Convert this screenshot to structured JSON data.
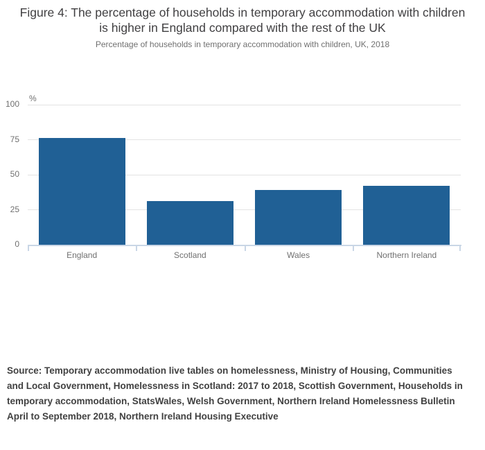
{
  "figure": {
    "title": "Figure 4: The percentage of households in temporary accommodation with children is higher in England compared with the rest of the UK",
    "subtitle": "Percentage of households in temporary accommodation with children, UK, 2018",
    "source": "Source: Temporary accommodation live tables on homelessness, Ministry of Housing, Communities and Local Government, Homelessness in Scotland: 2017 to 2018, Scottish Government, Households in temporary accommodation, StatsWales, Welsh Government, Northern Ireland Homelessness Bulletin April to September 2018, Northern Ireland Housing Executive"
  },
  "chart_data": {
    "type": "bar",
    "title": "Figure 4: The percentage of households in temporary accommodation with children is higher in England compared with the rest of the UK",
    "subtitle": "Percentage of households in temporary accommodation with children, UK, 2018",
    "categories": [
      "England",
      "Scotland",
      "Wales",
      "Northern Ireland"
    ],
    "values": [
      76,
      31,
      39,
      42
    ],
    "unit_label": "%",
    "xlabel": "",
    "ylabel": "%",
    "yticks": [
      0,
      25,
      50,
      75,
      100
    ],
    "ylim": [
      0,
      100
    ],
    "grid": true,
    "legend": "none",
    "bar_color": "#206095",
    "gridline_color": "#e3e3e3",
    "axis_line_color": "#c9d6e6",
    "label_color": "#707070"
  }
}
